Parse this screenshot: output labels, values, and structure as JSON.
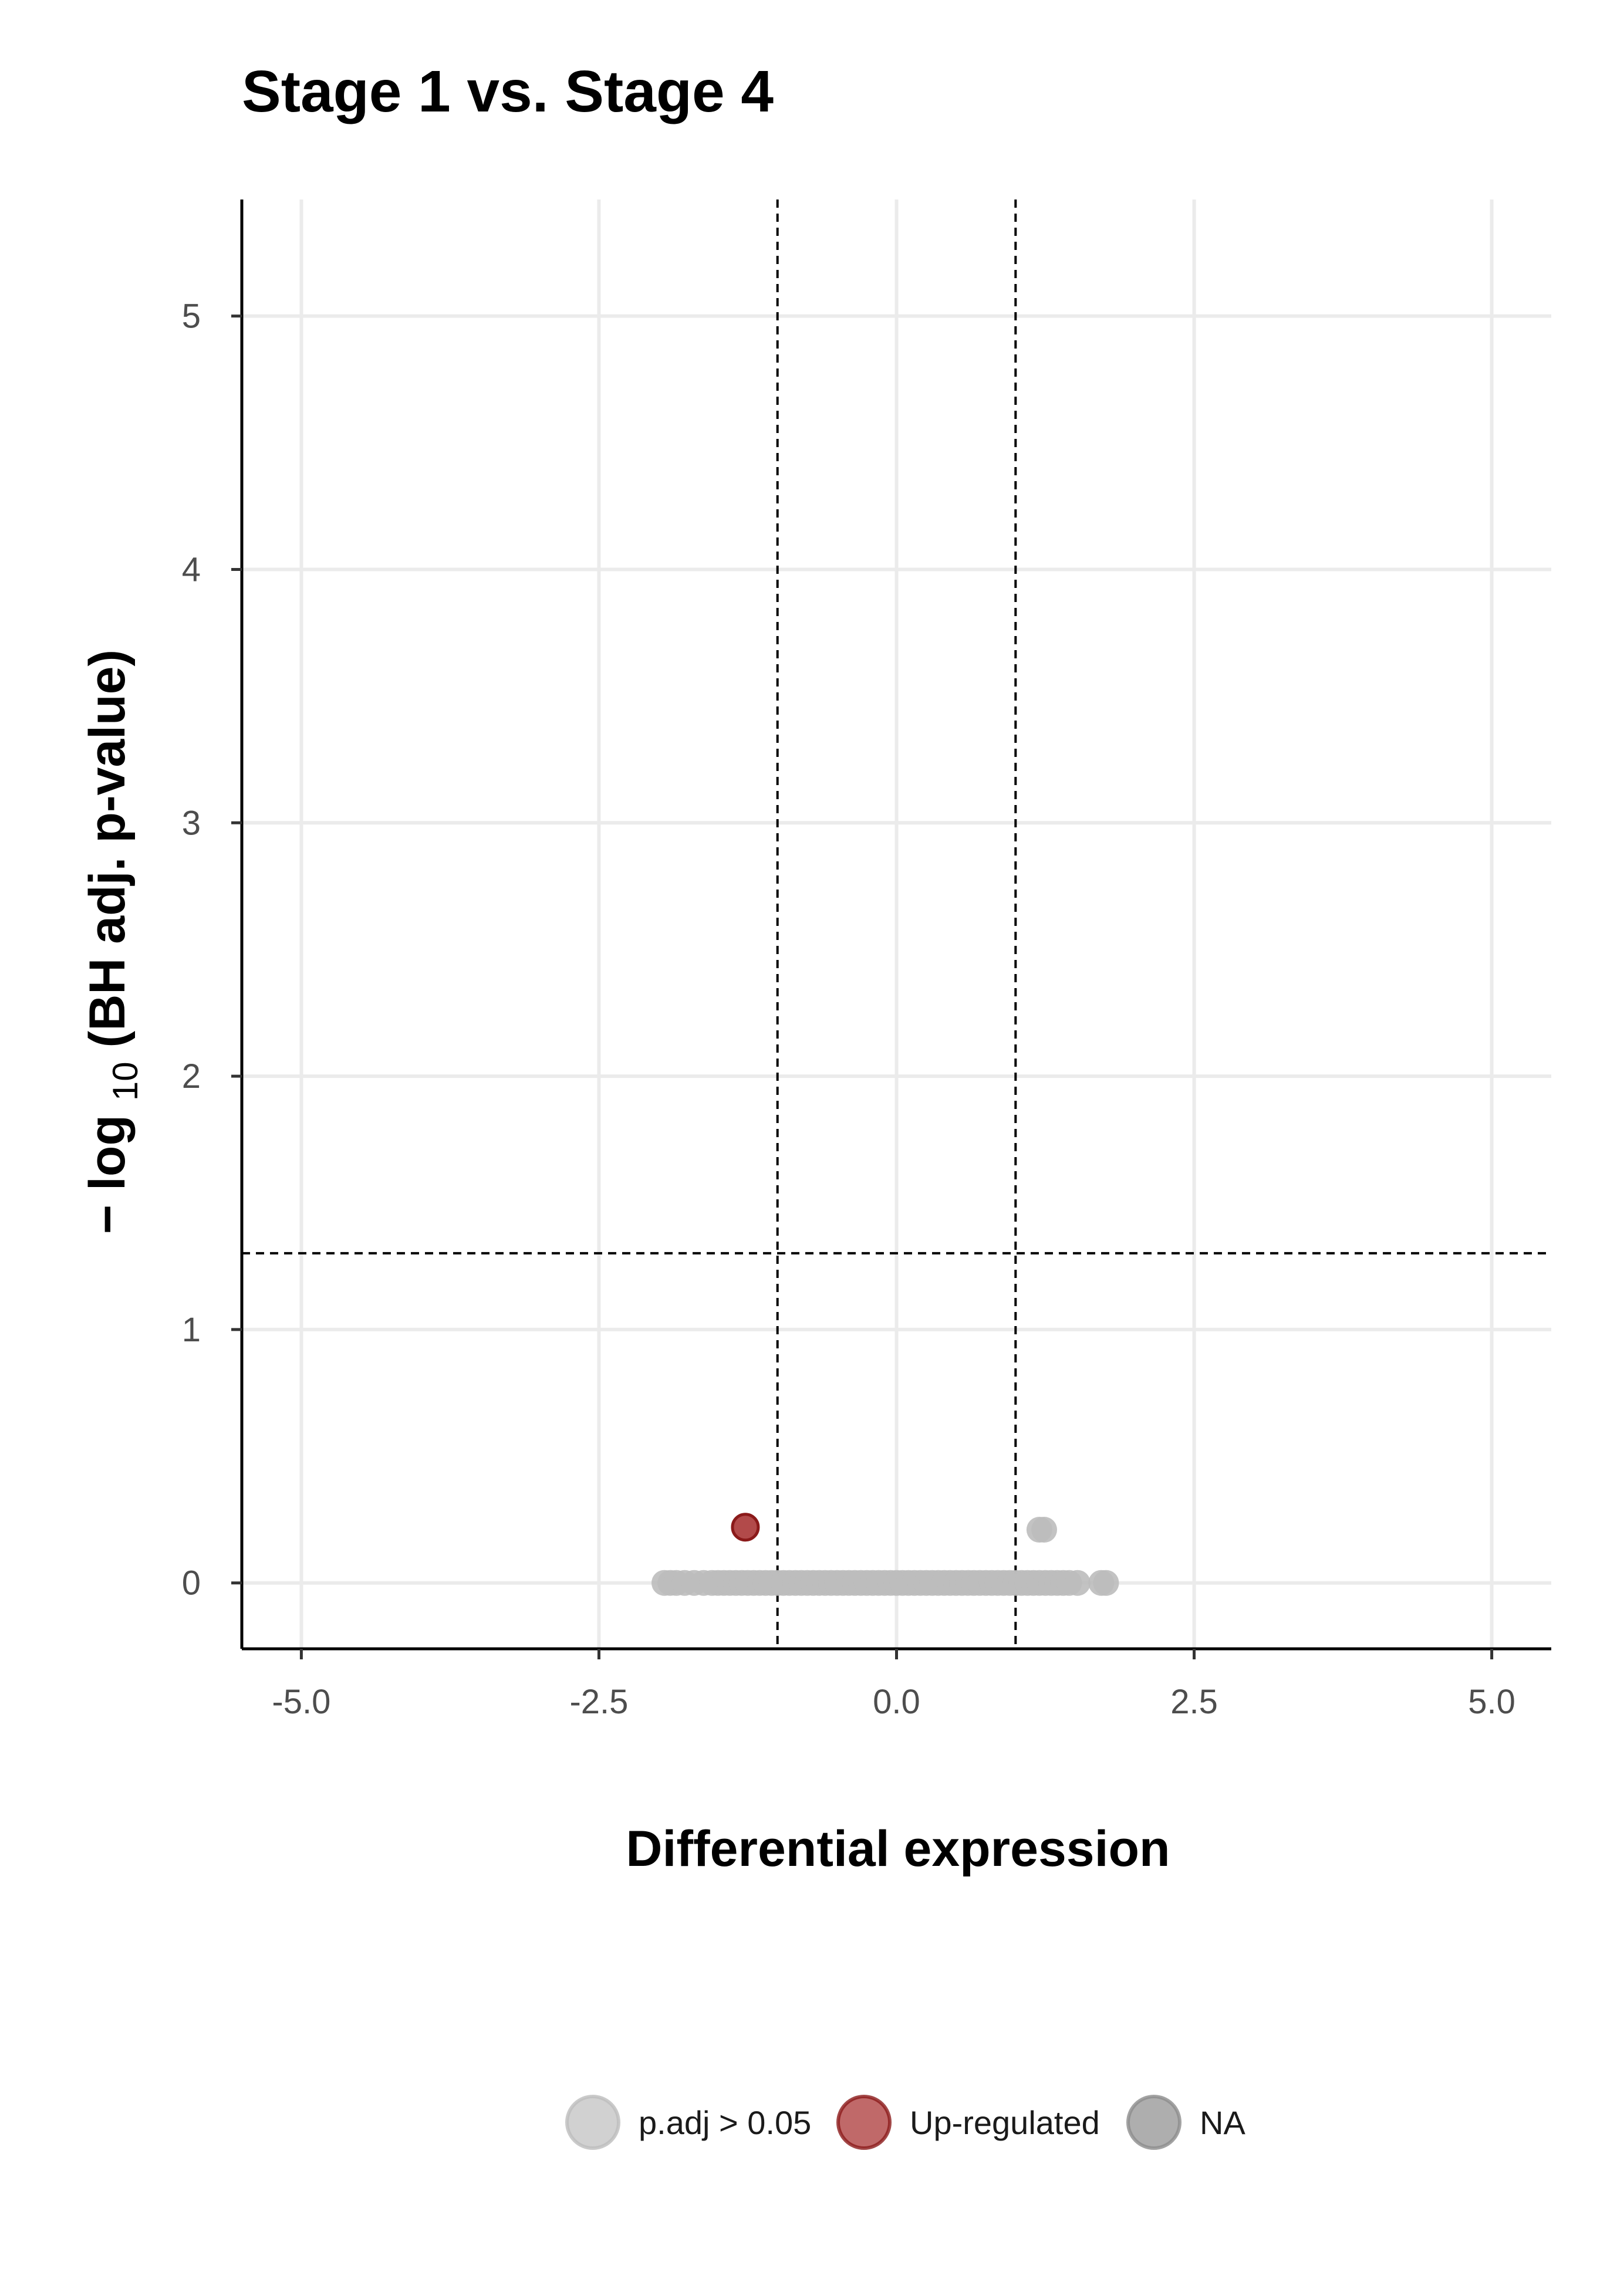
{
  "chart_data": {
    "type": "scatter",
    "title": "Stage 1 vs. Stage 4",
    "xlabel": "Differential expression",
    "ylabel_prefix": "− log",
    "ylabel_subscript": "10",
    "ylabel_suffix": "(BH adj. p-value)",
    "xlim": [
      -5.5,
      5.5
    ],
    "ylim": [
      -0.26,
      5.46
    ],
    "x_ticks": [
      -5.0,
      -2.5,
      0.0,
      2.5,
      5.0
    ],
    "x_tick_labels": [
      "-5.0",
      "-2.5",
      "0.0",
      "2.5",
      "5.0"
    ],
    "y_ticks": [
      0,
      1,
      2,
      3,
      4,
      5
    ],
    "y_tick_labels": [
      "0",
      "1",
      "2",
      "3",
      "4",
      "5"
    ],
    "grid": true,
    "reference_lines": {
      "vertical": [
        -1,
        1
      ],
      "horizontal": [
        1.301
      ],
      "style": "dashed"
    },
    "legend_position": "bottom",
    "series": [
      {
        "name": "p.adj > 0.05",
        "color": "#bdbdbd",
        "points": [
          [
            -1.95,
            0
          ],
          [
            -1.9,
            0
          ],
          [
            -1.85,
            0
          ],
          [
            -1.78,
            0
          ],
          [
            -1.7,
            0
          ],
          [
            -1.62,
            0
          ],
          [
            -1.55,
            0
          ],
          [
            -1.5,
            0
          ],
          [
            -1.45,
            0
          ],
          [
            -1.4,
            0
          ],
          [
            -1.35,
            0
          ],
          [
            -1.3,
            0
          ],
          [
            -1.25,
            0
          ],
          [
            -1.2,
            0
          ],
          [
            -1.15,
            0
          ],
          [
            -1.1,
            0
          ],
          [
            -1.05,
            0
          ],
          [
            -1.0,
            0
          ],
          [
            -0.95,
            0
          ],
          [
            -0.9,
            0
          ],
          [
            -0.85,
            0
          ],
          [
            -0.8,
            0
          ],
          [
            -0.75,
            0
          ],
          [
            -0.7,
            0
          ],
          [
            -0.65,
            0
          ],
          [
            -0.6,
            0
          ],
          [
            -0.55,
            0
          ],
          [
            -0.5,
            0
          ],
          [
            -0.45,
            0
          ],
          [
            -0.4,
            0
          ],
          [
            -0.35,
            0
          ],
          [
            -0.3,
            0
          ],
          [
            -0.25,
            0
          ],
          [
            -0.2,
            0
          ],
          [
            -0.15,
            0
          ],
          [
            -0.1,
            0
          ],
          [
            -0.05,
            0
          ],
          [
            0.0,
            0
          ],
          [
            0.05,
            0
          ],
          [
            0.1,
            0
          ],
          [
            0.15,
            0
          ],
          [
            0.2,
            0
          ],
          [
            0.25,
            0
          ],
          [
            0.3,
            0
          ],
          [
            0.35,
            0
          ],
          [
            0.4,
            0
          ],
          [
            0.45,
            0
          ],
          [
            0.5,
            0
          ],
          [
            0.55,
            0
          ],
          [
            0.6,
            0
          ],
          [
            0.65,
            0
          ],
          [
            0.7,
            0
          ],
          [
            0.75,
            0
          ],
          [
            0.8,
            0
          ],
          [
            0.85,
            0
          ],
          [
            0.9,
            0
          ],
          [
            0.95,
            0
          ],
          [
            1.0,
            0
          ],
          [
            1.05,
            0
          ],
          [
            1.1,
            0
          ],
          [
            1.15,
            0
          ],
          [
            1.2,
            0
          ],
          [
            1.25,
            0
          ],
          [
            1.3,
            0
          ],
          [
            1.35,
            0
          ],
          [
            1.4,
            0
          ],
          [
            1.45,
            0
          ],
          [
            1.52,
            0
          ],
          [
            1.72,
            0
          ],
          [
            1.76,
            0
          ],
          [
            1.2,
            0.21
          ],
          [
            1.24,
            0.21
          ]
        ]
      },
      {
        "name": "Up-regulated",
        "color": "#a52a2a",
        "points": [
          [
            -1.27,
            0.22
          ]
        ]
      },
      {
        "name": "NA",
        "color": "#8c8c8c",
        "points": []
      }
    ],
    "legend": [
      {
        "label": "p.adj > 0.05",
        "color": "#bdbdbd"
      },
      {
        "label": "Up-regulated",
        "color": "#a52a2a"
      },
      {
        "label": "NA",
        "color": "#8c8c8c"
      }
    ]
  }
}
